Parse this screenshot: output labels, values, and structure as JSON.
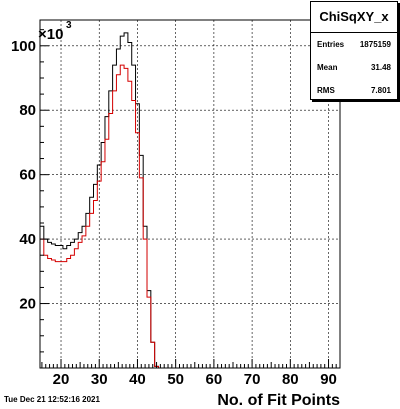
{
  "chart_data": {
    "type": "step-histogram",
    "xlabel": "No. of Fit Points",
    "ylabel": "",
    "y_multiplier_label": "×10",
    "y_multiplier_exp": "3",
    "xlim": [
      14.5,
      93.0
    ],
    "ylim": [
      0,
      108
    ],
    "x_ticks": [
      20,
      30,
      40,
      50,
      60,
      70,
      80,
      90
    ],
    "y_ticks": [
      20,
      40,
      60,
      80,
      100
    ],
    "grid": true,
    "bin_start": 14.5,
    "bin_width": 1,
    "series": [
      {
        "color": "#000000",
        "values": [
          44,
          40,
          39,
          38.5,
          38,
          38,
          37,
          38,
          39,
          40,
          42,
          44,
          48,
          53,
          57,
          63,
          70,
          78,
          86,
          94,
          99,
          103,
          104,
          101,
          94,
          82,
          66,
          44,
          24,
          8,
          0.5
        ]
      },
      {
        "color": "#d40000",
        "values": [
          40,
          35,
          34,
          33.5,
          33,
          33,
          33,
          34,
          35,
          37,
          39,
          41,
          44,
          48,
          52,
          58,
          64,
          71,
          79,
          86,
          91,
          94,
          93,
          89,
          83,
          73,
          59,
          40,
          22,
          8,
          0.5
        ]
      }
    ]
  },
  "stats_box": {
    "title": "ChiSqXY_x",
    "entries_label": "Entries",
    "entries_value": "1875159",
    "mean_label": "Mean",
    "mean_value": "31.48",
    "rms_label": "RMS",
    "rms_value": "7.801"
  },
  "footer": {
    "timestamp": "Tue Dec 21 12:52:16 2021"
  }
}
